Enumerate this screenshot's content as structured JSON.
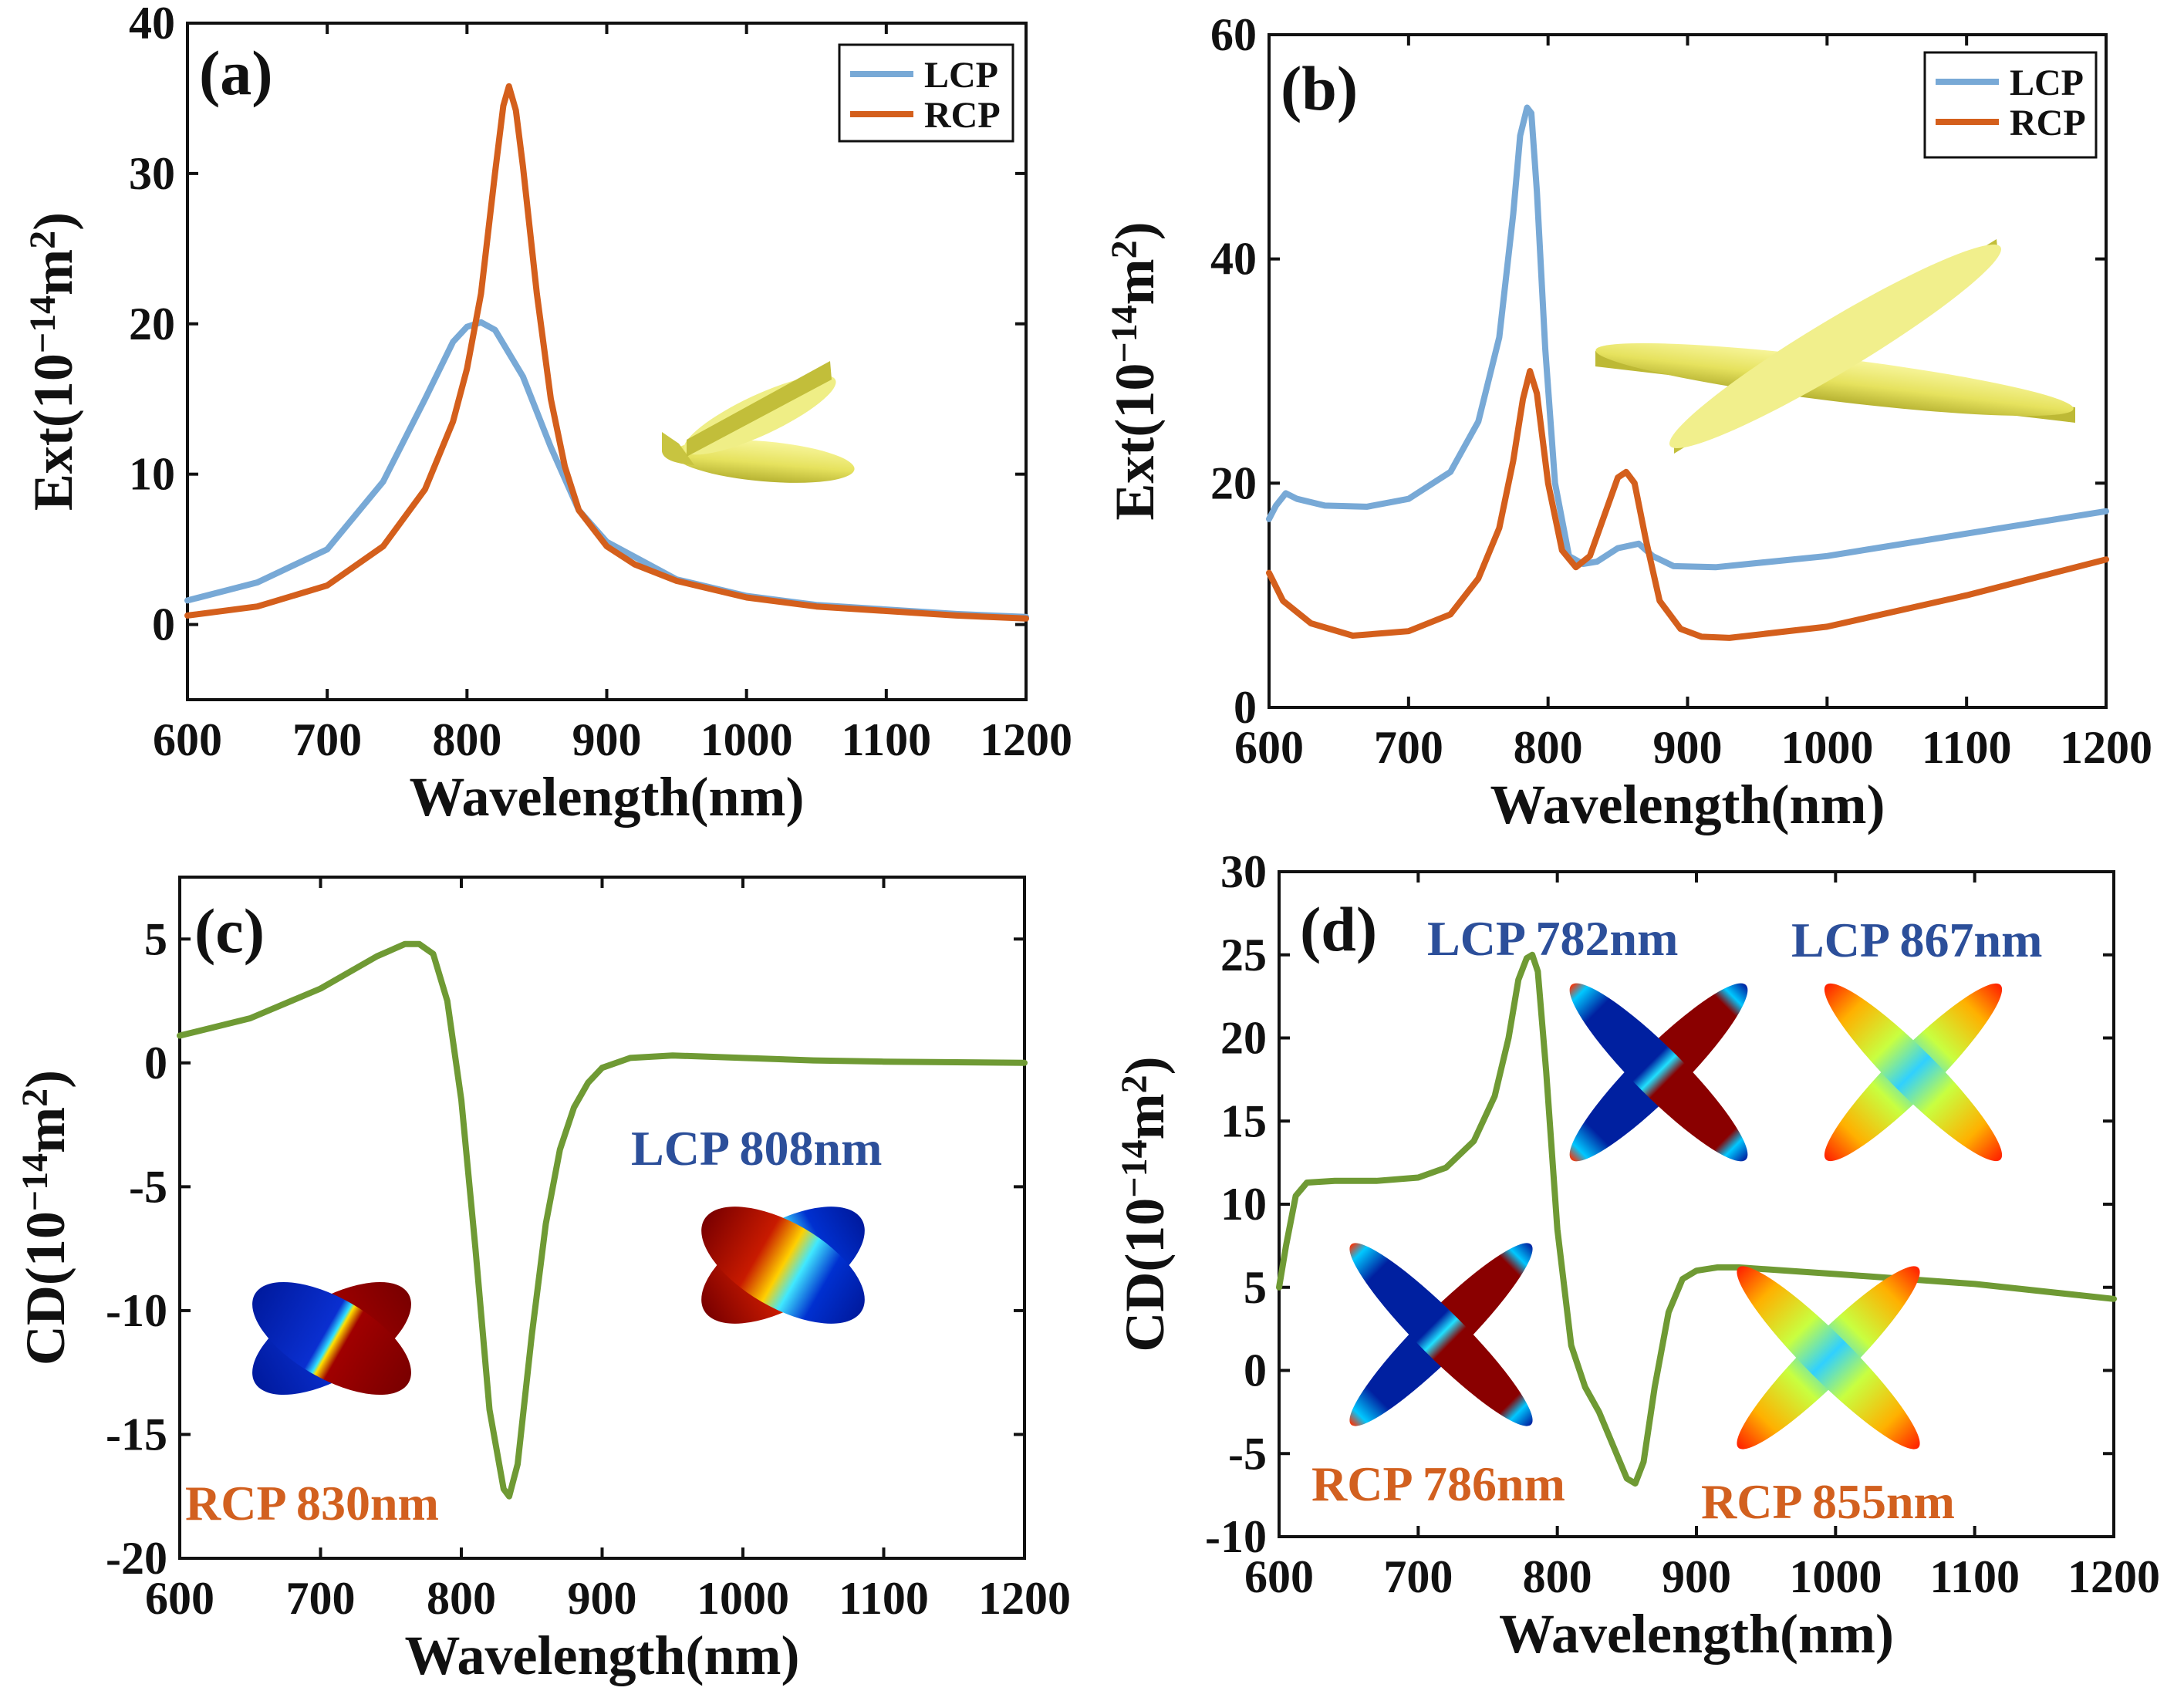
{
  "colors": {
    "lcp": "#78a9d6",
    "rcp": "#d45f1c",
    "cd": "#6f9a34",
    "annot_lcp": "#2c4f9a",
    "annot_rcp": "#d2601f"
  },
  "chart_data": [
    {
      "type": "line",
      "panel": "(a)",
      "xlabel": "Wavelength(nm)",
      "ylabel": "Ext(10",
      "ylabel_sup": "−14",
      "ylabel_unit": "m",
      "ylabel_sup2": "2",
      "ylabel_close": ")",
      "xlim": [
        600,
        1200
      ],
      "ylim": [
        -5,
        40
      ],
      "xticks": [
        600,
        700,
        800,
        900,
        1000,
        1100,
        1200
      ],
      "yticks": [
        0,
        10,
        20,
        30,
        40
      ],
      "legend": [
        "LCP",
        "RCP"
      ],
      "series": [
        {
          "name": "LCP",
          "x": [
            600,
            650,
            700,
            740,
            770,
            790,
            800,
            810,
            820,
            840,
            860,
            880,
            900,
            950,
            1000,
            1050,
            1100,
            1150,
            1200
          ],
          "y": [
            1.6,
            2.8,
            5.0,
            9.5,
            15.0,
            18.8,
            19.8,
            20.1,
            19.6,
            16.5,
            11.8,
            7.6,
            5.5,
            3.0,
            1.9,
            1.3,
            1.0,
            0.7,
            0.5
          ]
        },
        {
          "name": "RCP",
          "x": [
            600,
            650,
            700,
            740,
            770,
            790,
            800,
            810,
            820,
            826,
            830,
            835,
            840,
            850,
            860,
            870,
            880,
            900,
            920,
            950,
            1000,
            1050,
            1100,
            1150,
            1200
          ],
          "y": [
            0.6,
            1.2,
            2.6,
            5.2,
            9.0,
            13.5,
            17.0,
            22.0,
            30.0,
            34.5,
            35.8,
            34.2,
            30.5,
            22.0,
            15.0,
            10.5,
            7.6,
            5.2,
            4.0,
            2.9,
            1.8,
            1.2,
            0.9,
            0.6,
            0.4
          ]
        }
      ]
    },
    {
      "type": "line",
      "panel": "(b)",
      "xlabel": "Wavelength(nm)",
      "ylabel": "Ext(10",
      "ylabel_sup": "−14",
      "ylabel_unit": "m",
      "ylabel_sup2": "2",
      "ylabel_close": ")",
      "xlim": [
        600,
        1200
      ],
      "ylim": [
        0,
        60
      ],
      "xticks": [
        600,
        700,
        800,
        900,
        1000,
        1100,
        1200
      ],
      "yticks": [
        0,
        20,
        40,
        60
      ],
      "legend": [
        "LCP",
        "RCP"
      ],
      "series": [
        {
          "name": "LCP",
          "x": [
            600,
            605,
            612,
            620,
            640,
            670,
            700,
            730,
            750,
            765,
            775,
            780,
            785,
            788,
            792,
            798,
            805,
            815,
            825,
            835,
            850,
            865,
            875,
            890,
            920,
            1000,
            1100,
            1200
          ],
          "y": [
            16.8,
            18.0,
            19.1,
            18.6,
            18.0,
            17.9,
            18.6,
            21.0,
            25.5,
            33.0,
            44.0,
            51.0,
            53.5,
            53.0,
            46.0,
            32.0,
            20.0,
            13.5,
            12.8,
            13.0,
            14.2,
            14.6,
            13.5,
            12.6,
            12.5,
            13.5,
            15.5,
            17.5
          ]
        },
        {
          "name": "RCP",
          "x": [
            600,
            610,
            630,
            660,
            700,
            730,
            750,
            765,
            775,
            782,
            787,
            792,
            800,
            810,
            820,
            830,
            840,
            850,
            856,
            862,
            870,
            880,
            895,
            910,
            930,
            1000,
            1100,
            1200
          ],
          "y": [
            12.0,
            9.5,
            7.5,
            6.4,
            6.8,
            8.3,
            11.5,
            16.0,
            22.0,
            27.5,
            30.0,
            28.0,
            20.0,
            14.0,
            12.5,
            13.5,
            17.0,
            20.5,
            21.0,
            20.0,
            15.0,
            9.5,
            7.0,
            6.3,
            6.2,
            7.2,
            10.0,
            13.2
          ]
        }
      ]
    },
    {
      "type": "line",
      "panel": "(c)",
      "xlabel": "Wavelength(nm)",
      "ylabel": "CD(10",
      "ylabel_sup": "−14",
      "ylabel_unit": "m",
      "ylabel_sup2": "2",
      "ylabel_close": ")",
      "xlim": [
        600,
        1200
      ],
      "ylim": [
        -20,
        7.5
      ],
      "xticks": [
        600,
        700,
        800,
        900,
        1000,
        1100,
        1200
      ],
      "yticks": [
        5,
        0,
        -5,
        -10,
        -15,
        -20
      ],
      "series": [
        {
          "name": "CD",
          "x": [
            600,
            650,
            700,
            740,
            760,
            770,
            780,
            790,
            800,
            810,
            820,
            830,
            834,
            840,
            850,
            860,
            870,
            880,
            890,
            900,
            920,
            950,
            1000,
            1050,
            1100,
            1200
          ],
          "y": [
            1.1,
            1.8,
            3.0,
            4.3,
            4.8,
            4.8,
            4.4,
            2.5,
            -1.5,
            -7.5,
            -14.0,
            -17.2,
            -17.5,
            -16.2,
            -11.0,
            -6.5,
            -3.5,
            -1.8,
            -0.8,
            -0.2,
            0.2,
            0.3,
            0.2,
            0.1,
            0.05,
            0.0
          ]
        }
      ],
      "annotations": [
        {
          "text": "LCP 808nm",
          "kind": "LCP"
        },
        {
          "text": "RCP 830nm",
          "kind": "RCP"
        }
      ]
    },
    {
      "type": "line",
      "panel": "(d)",
      "xlabel": "Wavelength(nm)",
      "ylabel": "CD(10",
      "ylabel_sup": "−14",
      "ylabel_unit": "m",
      "ylabel_sup2": "2",
      "ylabel_close": ")",
      "xlim": [
        600,
        1200
      ],
      "ylim": [
        -10,
        30
      ],
      "xticks": [
        600,
        700,
        800,
        900,
        1000,
        1100,
        1200
      ],
      "yticks": [
        30,
        25,
        20,
        15,
        10,
        5,
        0,
        -5,
        -10
      ],
      "series": [
        {
          "name": "CD",
          "x": [
            600,
            605,
            612,
            620,
            640,
            670,
            700,
            720,
            740,
            755,
            765,
            772,
            778,
            782,
            786,
            792,
            800,
            810,
            820,
            830,
            840,
            850,
            856,
            862,
            870,
            880,
            890,
            900,
            915,
            930,
            1000,
            1100,
            1200
          ],
          "y": [
            5.0,
            7.5,
            10.5,
            11.3,
            11.4,
            11.4,
            11.6,
            12.2,
            13.8,
            16.5,
            20.0,
            23.5,
            24.8,
            25.0,
            24.0,
            18.0,
            8.5,
            1.5,
            -1.0,
            -2.5,
            -4.5,
            -6.5,
            -6.8,
            -5.5,
            -1.0,
            3.5,
            5.5,
            6.0,
            6.2,
            6.2,
            5.8,
            5.2,
            4.3
          ]
        }
      ],
      "annotations": [
        {
          "text": "LCP 782nm",
          "kind": "LCP"
        },
        {
          "text": "LCP 867nm",
          "kind": "LCP"
        },
        {
          "text": "RCP 786nm",
          "kind": "RCP"
        },
        {
          "text": "RCP 855nm",
          "kind": "RCP"
        }
      ]
    }
  ]
}
